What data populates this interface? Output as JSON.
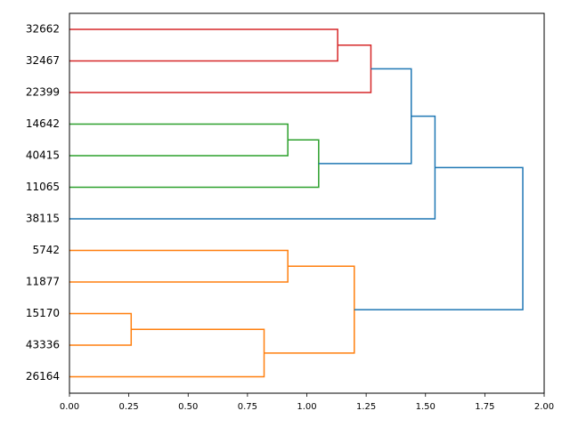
{
  "chart_data": {
    "type": "dendrogram",
    "orientation": "horizontal",
    "xlim": [
      0,
      2.0
    ],
    "x_ticks": [
      "0.00",
      "0.25",
      "0.50",
      "0.75",
      "1.00",
      "1.25",
      "1.50",
      "1.75",
      "2.00"
    ],
    "leaves": [
      "32662",
      "32467",
      "22399",
      "14642",
      "40415",
      "11065",
      "38115",
      "5742",
      "11877",
      "15170",
      "43336",
      "26164"
    ],
    "colors": {
      "red": "#d62728",
      "green": "#2ca02c",
      "orange": "#ff7f0e",
      "blue": "#1f77b4"
    },
    "merges": [
      {
        "a": "32662",
        "b": "32467",
        "height": 1.13,
        "color": "red",
        "id": "m1"
      },
      {
        "a": "m1",
        "b": "22399",
        "height": 1.27,
        "color": "red",
        "id": "m2"
      },
      {
        "a": "14642",
        "b": "40415",
        "height": 0.92,
        "color": "green",
        "id": "m3"
      },
      {
        "a": "m3",
        "b": "11065",
        "height": 1.05,
        "color": "green",
        "id": "m4"
      },
      {
        "a": "m2",
        "b": "m4",
        "height": 1.44,
        "color": "blue",
        "id": "m5"
      },
      {
        "a": "m5",
        "b": "38115",
        "height": 1.54,
        "color": "blue",
        "id": "m6"
      },
      {
        "a": "5742",
        "b": "11877",
        "height": 0.92,
        "color": "orange",
        "id": "m7"
      },
      {
        "a": "15170",
        "b": "43336",
        "height": 0.26,
        "color": "orange",
        "id": "m8"
      },
      {
        "a": "m8",
        "b": "26164",
        "height": 0.82,
        "color": "orange",
        "id": "m9"
      },
      {
        "a": "m7",
        "b": "m9",
        "height": 1.2,
        "color": "orange",
        "id": "m10"
      },
      {
        "a": "m6",
        "b": "m10",
        "height": 1.91,
        "color": "blue",
        "id": "m11"
      }
    ]
  }
}
